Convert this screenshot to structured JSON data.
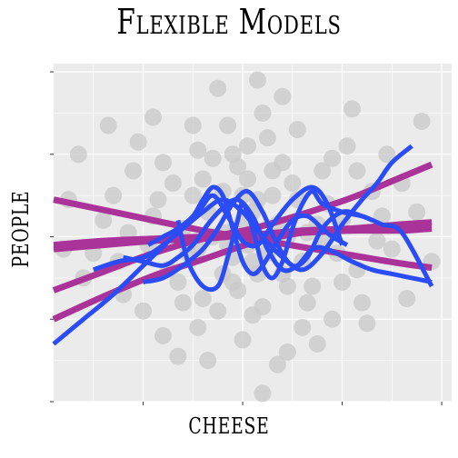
{
  "chart_data": {
    "type": "scatter",
    "title": "Flexible Models",
    "xlabel": "cheese",
    "ylabel": "people",
    "xlim": [
      -3.8,
      4.2
    ],
    "ylim": [
      -4.0,
      4.2
    ],
    "grid": true,
    "legend": "none",
    "colors": {
      "panel": "#ebebeb",
      "grid_major": "#ffffff",
      "points": "#c8c8c8",
      "linear_fits": "#aa3399",
      "flexible_fits": "#2b4cf5"
    },
    "series": [
      {
        "type": "scatter",
        "points": [
          [
            -1.8,
            0.5
          ],
          [
            -0.9,
            -0.3
          ],
          [
            -0.4,
            1.1
          ],
          [
            0.2,
            0.6
          ],
          [
            0.6,
            -0.2
          ],
          [
            1.1,
            0.9
          ],
          [
            -1.3,
            -1.1
          ],
          [
            0.3,
            -0.9
          ],
          [
            -0.2,
            2.0
          ],
          [
            0.8,
            1.8
          ],
          [
            1.5,
            0.3
          ],
          [
            -2.2,
            1.6
          ],
          [
            -2.8,
            0.4
          ],
          [
            -3.2,
            -1.0
          ],
          [
            2.3,
            -0.8
          ],
          [
            2.8,
            0.5
          ],
          [
            3.2,
            1.3
          ],
          [
            -0.5,
            -1.8
          ],
          [
            0.0,
            -2.5
          ],
          [
            1.3,
            -1.6
          ],
          [
            -1.0,
            2.7
          ],
          [
            0.4,
            3.0
          ],
          [
            -3.3,
            2.0
          ],
          [
            3.6,
            2.8
          ],
          [
            2.1,
            2.2
          ],
          [
            -1.6,
            -2.4
          ],
          [
            0.9,
            -2.8
          ],
          [
            1.8,
            -2.0
          ],
          [
            -0.3,
            0.1
          ],
          [
            0.1,
            1.4
          ],
          [
            -0.7,
            0.6
          ],
          [
            0.7,
            0.3
          ],
          [
            -1.1,
            -0.4
          ],
          [
            1.2,
            -0.6
          ],
          [
            -0.1,
            -1.3
          ],
          [
            0.5,
            2.4
          ],
          [
            -1.4,
            1.3
          ],
          [
            2.6,
            1.1
          ],
          [
            -2.5,
            -0.6
          ],
          [
            1.6,
            1.6
          ],
          [
            -0.8,
            -1.5
          ],
          [
            0.3,
            0.9
          ],
          [
            -0.2,
            -0.5
          ],
          [
            0.9,
            0.0
          ],
          [
            -1.9,
            -0.2
          ],
          [
            2.0,
            0.4
          ],
          [
            -0.6,
            1.9
          ],
          [
            1.4,
            -1.2
          ],
          [
            0.1,
            -0.2
          ],
          [
            -2.1,
            2.3
          ],
          [
            0.8,
            3.4
          ],
          [
            -0.5,
            3.6
          ],
          [
            -3.0,
            -0.4
          ],
          [
            3.0,
            -0.3
          ],
          [
            2.4,
            -1.6
          ],
          [
            -2.0,
            -1.8
          ],
          [
            0.4,
            -1.7
          ],
          [
            -1.2,
            0.2
          ],
          [
            1.0,
            1.3
          ],
          [
            -0.3,
            2.7
          ],
          [
            1.9,
            -0.4
          ],
          [
            -1.7,
            0.9
          ],
          [
            0.6,
            1.0
          ],
          [
            -0.9,
            -2.2
          ],
          [
            2.9,
            2.0
          ],
          [
            -2.6,
            1.0
          ],
          [
            0.0,
            0.4
          ],
          [
            0.2,
            -0.6
          ],
          [
            -0.4,
            -0.9
          ],
          [
            1.7,
            0.8
          ],
          [
            -1.5,
            -0.8
          ],
          [
            0.5,
            -0.4
          ],
          [
            -0.1,
            1.7
          ],
          [
            1.1,
            2.6
          ],
          [
            -1.8,
            2.9
          ],
          [
            3.5,
            0.6
          ],
          [
            -3.5,
            0.9
          ],
          [
            2.2,
            3.1
          ],
          [
            -0.7,
            -3.0
          ],
          [
            1.5,
            -2.6
          ],
          [
            0.7,
            -3.1
          ],
          [
            -1.3,
            -2.9
          ],
          [
            2.5,
            -2.1
          ],
          [
            3.3,
            -1.5
          ],
          [
            -2.4,
            -1.4
          ],
          [
            0.3,
            3.8
          ],
          [
            -0.2,
            -1.1
          ],
          [
            0.9,
            -1.2
          ],
          [
            -0.6,
            0.0
          ],
          [
            1.3,
            0.1
          ],
          [
            -1.0,
            1.0
          ],
          [
            0.6,
            1.6
          ],
          [
            0.1,
            2.2
          ],
          [
            -0.9,
            2.1
          ],
          [
            2.7,
            -0.1
          ],
          [
            1.8,
            1.9
          ],
          [
            -2.7,
            2.7
          ],
          [
            -1.6,
            1.8
          ],
          [
            2.0,
            -1.1
          ],
          [
            0.2,
            -1.9
          ],
          [
            -3.6,
            -0.3
          ],
          [
            3.8,
            -0.6
          ],
          [
            0.4,
            -3.8
          ],
          [
            -0.3,
            -0.2
          ],
          [
            0.8,
            -0.9
          ],
          [
            1.6,
            -0.1
          ],
          [
            -1.2,
            -1.6
          ],
          [
            0.0,
            1.0
          ],
          [
            -2.3,
            0.1
          ],
          [
            2.3,
            1.6
          ],
          [
            -0.8,
            1.4
          ],
          [
            1.2,
            -2.2
          ]
        ]
      },
      {
        "type": "line",
        "points": [
          [
            -3.8,
            -1.3
          ],
          [
            -2.8,
            -0.85
          ],
          [
            -1.8,
            -0.4
          ],
          [
            -0.8,
            -0.05
          ],
          [
            0.2,
            0.2
          ],
          [
            1.2,
            0.55
          ],
          [
            2.2,
            0.95
          ],
          [
            3.2,
            1.45
          ],
          [
            3.8,
            1.75
          ]
        ]
      },
      {
        "type": "line",
        "points": [
          [
            -3.8,
            -2.0
          ],
          [
            -2.8,
            -1.45
          ],
          [
            -1.8,
            -0.95
          ],
          [
            -0.8,
            -0.55
          ],
          [
            0.2,
            -0.15
          ],
          [
            1.2,
            0.1
          ],
          [
            2.2,
            0.2
          ],
          [
            3.2,
            0.25
          ],
          [
            3.8,
            0.25
          ]
        ]
      },
      {
        "type": "line",
        "points": [
          [
            -3.8,
            0.9
          ],
          [
            -2.8,
            0.65
          ],
          [
            -1.8,
            0.4
          ],
          [
            -0.8,
            0.15
          ],
          [
            0.2,
            -0.05
          ],
          [
            1.2,
            -0.25
          ],
          [
            2.2,
            -0.45
          ],
          [
            3.2,
            -0.65
          ],
          [
            3.8,
            -0.75
          ]
        ]
      },
      {
        "type": "line",
        "points": [
          [
            -3.8,
            -0.2
          ],
          [
            -2.8,
            -0.1
          ],
          [
            -1.8,
            -0.05
          ],
          [
            -0.8,
            0.0
          ],
          [
            0.2,
            0.05
          ],
          [
            1.2,
            0.15
          ],
          [
            2.2,
            0.2
          ],
          [
            3.2,
            0.3
          ],
          [
            3.8,
            0.35
          ]
        ]
      },
      {
        "type": "line",
        "points": [
          [
            -3.8,
            -0.3
          ],
          [
            -2.8,
            -0.2
          ],
          [
            -1.8,
            -0.1
          ],
          [
            -0.8,
            -0.05
          ],
          [
            0.2,
            0.05
          ],
          [
            1.2,
            0.1
          ],
          [
            2.2,
            0.15
          ],
          [
            3.2,
            0.15
          ],
          [
            3.8,
            0.2
          ]
        ]
      },
      {
        "type": "line",
        "points": [
          [
            -3.8,
            -2.6
          ],
          [
            -3.2,
            -2.0
          ],
          [
            -2.6,
            -1.4
          ],
          [
            -2.0,
            -0.7
          ],
          [
            -1.4,
            0.0
          ],
          [
            -0.9,
            0.6
          ],
          [
            -0.6,
            1.0
          ],
          [
            -0.3,
            0.5
          ],
          [
            0.0,
            -0.1
          ],
          [
            0.3,
            -0.2
          ],
          [
            0.6,
            0.3
          ],
          [
            1.0,
            0.9
          ],
          [
            1.4,
            1.2
          ],
          [
            1.7,
            0.8
          ],
          [
            2.0,
            -0.2
          ]
        ]
      },
      {
        "type": "line",
        "points": [
          [
            -3.0,
            -0.8
          ],
          [
            -2.5,
            -0.6
          ],
          [
            -2.0,
            -0.5
          ],
          [
            -1.6,
            -0.2
          ],
          [
            -1.2,
            0.2
          ],
          [
            -0.8,
            0.6
          ],
          [
            -0.4,
            0.9
          ],
          [
            0.0,
            0.6
          ],
          [
            0.4,
            0.0
          ],
          [
            0.8,
            -0.5
          ],
          [
            1.2,
            -0.8
          ],
          [
            1.6,
            -0.4
          ],
          [
            2.0,
            0.3
          ],
          [
            2.4,
            0.9
          ],
          [
            2.7,
            1.3
          ],
          [
            3.0,
            1.8
          ],
          [
            3.4,
            2.2
          ]
        ]
      },
      {
        "type": "line",
        "points": [
          [
            -2.0,
            -1.1
          ],
          [
            -1.6,
            -1.0
          ],
          [
            -1.2,
            -0.7
          ],
          [
            -0.8,
            -0.3
          ],
          [
            -0.5,
            0.2
          ],
          [
            -0.2,
            0.8
          ],
          [
            0.1,
            1.1
          ],
          [
            0.4,
            0.6
          ],
          [
            0.7,
            -0.2
          ],
          [
            1.0,
            -0.7
          ],
          [
            1.3,
            -0.5
          ],
          [
            1.6,
            0.2
          ],
          [
            2.0,
            0.6
          ],
          [
            2.4,
            0.5
          ],
          [
            2.8,
            0.3
          ],
          [
            3.2,
            0.1
          ],
          [
            3.8,
            -1.2
          ]
        ]
      },
      {
        "type": "line",
        "points": [
          [
            -2.4,
            -0.5
          ],
          [
            -2.0,
            -0.6
          ],
          [
            -1.6,
            -0.7
          ],
          [
            -1.3,
            -0.5
          ],
          [
            -1.0,
            -0.2
          ],
          [
            -0.7,
            0.3
          ],
          [
            -0.4,
            0.7
          ],
          [
            -0.1,
            0.9
          ],
          [
            0.2,
            0.5
          ],
          [
            0.5,
            -0.3
          ],
          [
            0.8,
            -0.8
          ],
          [
            1.1,
            -0.7
          ],
          [
            1.4,
            -0.3
          ],
          [
            1.7,
            -0.3
          ],
          [
            2.2,
            -0.6
          ],
          [
            2.6,
            -0.8
          ],
          [
            3.0,
            -0.9
          ],
          [
            3.4,
            -1.0
          ],
          [
            3.8,
            -1.1
          ]
        ]
      },
      {
        "type": "line",
        "points": [
          [
            -1.3,
            0.4
          ],
          [
            -1.1,
            -0.6
          ],
          [
            -0.8,
            -1.2
          ],
          [
            -0.5,
            -1.2
          ],
          [
            -0.3,
            -0.5
          ],
          [
            -0.1,
            0.4
          ],
          [
            0.0,
            0.8
          ],
          [
            0.2,
            0.2
          ],
          [
            0.4,
            -0.7
          ],
          [
            0.6,
            -1.0
          ],
          [
            0.8,
            -0.6
          ],
          [
            1.0,
            0.2
          ],
          [
            1.2,
            0.8
          ],
          [
            1.4,
            1.1
          ],
          [
            1.6,
            0.8
          ],
          [
            2.0,
            0.6
          ],
          [
            2.4,
            0.5
          ],
          [
            2.6,
            0.4
          ]
        ]
      },
      {
        "type": "line",
        "points": [
          [
            -1.9,
            -0.2
          ],
          [
            -1.6,
            0.0
          ],
          [
            -1.3,
            0.2
          ],
          [
            -1.0,
            0.5
          ],
          [
            -0.8,
            0.9
          ],
          [
            -0.6,
            1.2
          ],
          [
            -0.4,
            1.0
          ],
          [
            -0.2,
            0.2
          ],
          [
            0.0,
            -0.6
          ],
          [
            0.2,
            -0.9
          ],
          [
            0.4,
            -0.7
          ],
          [
            0.7,
            -0.1
          ],
          [
            1.0,
            0.4
          ],
          [
            1.3,
            0.5
          ],
          [
            1.6,
            0.2
          ],
          [
            1.8,
            0.0
          ],
          [
            2.1,
            -0.2
          ]
        ]
      }
    ]
  }
}
